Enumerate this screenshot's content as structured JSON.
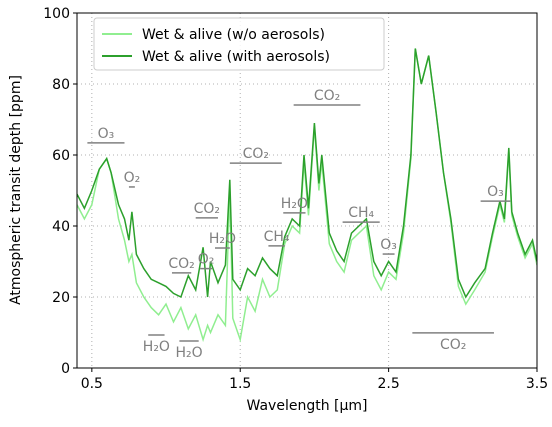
{
  "chart_data": {
    "type": "line",
    "xlabel": "Wavelength [μm]",
    "ylabel": "Atmospheric transit depth [ppm]",
    "xlim": [
      0.4,
      3.5
    ],
    "ylim": [
      0,
      100
    ],
    "xticks": [
      0.5,
      1.5,
      2.5,
      3.5
    ],
    "yticks": [
      0,
      20,
      40,
      60,
      80,
      100
    ],
    "grid": true,
    "legend": "upper left",
    "x": [
      0.4,
      0.45,
      0.5,
      0.55,
      0.6,
      0.63,
      0.68,
      0.72,
      0.75,
      0.77,
      0.8,
      0.85,
      0.9,
      0.95,
      1.0,
      1.05,
      1.1,
      1.15,
      1.2,
      1.25,
      1.28,
      1.3,
      1.35,
      1.4,
      1.43,
      1.45,
      1.5,
      1.55,
      1.6,
      1.65,
      1.7,
      1.75,
      1.8,
      1.85,
      1.9,
      1.93,
      1.96,
      2.0,
      2.03,
      2.05,
      2.1,
      2.15,
      2.2,
      2.25,
      2.3,
      2.35,
      2.4,
      2.45,
      2.5,
      2.55,
      2.6,
      2.65,
      2.68,
      2.72,
      2.77,
      2.82,
      2.87,
      2.92,
      2.97,
      3.02,
      3.08,
      3.15,
      3.2,
      3.25,
      3.28,
      3.31,
      3.33,
      3.37,
      3.42,
      3.47,
      3.5
    ],
    "series": [
      {
        "name": "Wet & alive (w/o aerosols)",
        "color": "#90ee90",
        "values": [
          46,
          42,
          46,
          56,
          59,
          55,
          42,
          36,
          30,
          32,
          24,
          20,
          17,
          15,
          18,
          13,
          17,
          11,
          15,
          8,
          12,
          10,
          15,
          12,
          50,
          14,
          8,
          20,
          16,
          25,
          20,
          22,
          35,
          40,
          38,
          58,
          43,
          68,
          50,
          58,
          35,
          30,
          27,
          36,
          38,
          40,
          26,
          22,
          27,
          25,
          38,
          59,
          90,
          80,
          88,
          72,
          55,
          41,
          23,
          18,
          22,
          27,
          37,
          46,
          41,
          61,
          43,
          37,
          31,
          35,
          29
        ]
      },
      {
        "name": "Wet & alive (with aerosols)",
        "color": "#2ca02c",
        "values": [
          49,
          45,
          50,
          56,
          59,
          55,
          46,
          42,
          36,
          44,
          32,
          28,
          25,
          24,
          23,
          21,
          20,
          26,
          22,
          34,
          20,
          30,
          24,
          29,
          53,
          25,
          22,
          28,
          26,
          31,
          28,
          26,
          37,
          42,
          40,
          60,
          45,
          69,
          52,
          60,
          38,
          33,
          30,
          38,
          40,
          42,
          30,
          26,
          30,
          27,
          40,
          60,
          90,
          80,
          88,
          72,
          55,
          42,
          25,
          20,
          24,
          28,
          38,
          47,
          42,
          62,
          44,
          38,
          32,
          36,
          30
        ]
      }
    ],
    "annotations": [
      {
        "label": "O₃",
        "x": [
          0.47,
          0.72
        ],
        "y": 63.4
      },
      {
        "label": "O₂",
        "x": [
          0.75,
          0.79
        ],
        "y": 51
      },
      {
        "label": "H₂O",
        "x": [
          0.88,
          0.99
        ],
        "y": 9.3
      },
      {
        "label": "CO₂",
        "x": [
          1.04,
          1.17
        ],
        "y": 26.8
      },
      {
        "label": "H₂O",
        "x": [
          1.09,
          1.22
        ],
        "y": 7.6
      },
      {
        "label": "O₂",
        "x": [
          1.23,
          1.31
        ],
        "y": 28
      },
      {
        "label": "H₂O",
        "x": [
          1.33,
          1.43
        ],
        "y": 33.8
      },
      {
        "label": "CO₂",
        "x": [
          1.2,
          1.35
        ],
        "y": 42.3
      },
      {
        "label": "CO₂",
        "x": [
          1.43,
          1.78
        ],
        "y": 57.7
      },
      {
        "label": "CH₄",
        "x": [
          1.69,
          1.8
        ],
        "y": 34.4
      },
      {
        "label": "H₂O",
        "x": [
          1.79,
          1.94
        ],
        "y": 43.7
      },
      {
        "label": "CO₂",
        "x": [
          1.86,
          2.31
        ],
        "y": 74.1
      },
      {
        "label": "CH₄",
        "x": [
          2.19,
          2.44
        ],
        "y": 41.1
      },
      {
        "label": "O₃",
        "x": [
          2.46,
          2.54
        ],
        "y": 32.1
      },
      {
        "label": "CO₂",
        "x": [
          2.66,
          3.21
        ],
        "y": 9.9
      },
      {
        "label": "O₃",
        "x": [
          3.12,
          3.32
        ],
        "y": 47
      }
    ]
  }
}
